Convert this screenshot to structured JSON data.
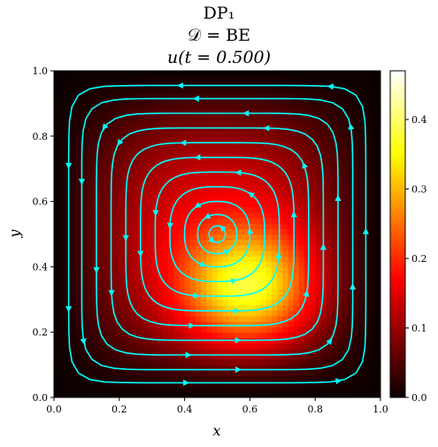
{
  "chart_data": {
    "type": "heatmap",
    "title_lines": [
      "DP$_1$",
      "$\\mathcal{D}$ = BE",
      "$u(t = 0.500)$"
    ],
    "title_display": [
      "DP₁",
      "𝒟 = BE",
      "u(t = 0.500)"
    ],
    "xlabel": "x",
    "ylabel": "y",
    "xlim": [
      0.0,
      1.0
    ],
    "ylim": [
      0.0,
      1.0
    ],
    "xticks": [
      0.0,
      0.2,
      0.4,
      0.6,
      0.8,
      1.0
    ],
    "xtick_labels": [
      "0.0",
      "0.2",
      "0.4",
      "0.6",
      "0.8",
      "1.0"
    ],
    "yticks": [
      0.0,
      0.2,
      0.4,
      0.6,
      0.8,
      1.0
    ],
    "ytick_labels": [
      "0.0",
      "0.2",
      "0.4",
      "0.6",
      "0.8",
      "1.0"
    ],
    "colormap": "hot",
    "colorbar": {
      "range": [
        0.0,
        0.47
      ],
      "ticks": [
        0.0,
        0.1,
        0.2,
        0.3,
        0.4
      ],
      "tick_labels": [
        "0.0",
        "0.1",
        "0.2",
        "0.3",
        "0.4"
      ]
    },
    "field": {
      "peak_value": 0.47,
      "peak_location": [
        0.62,
        0.3
      ]
    },
    "streamlines": {
      "color": "#00ffff",
      "vortex_center": [
        0.5,
        0.5
      ],
      "direction": "counter-clockwise",
      "closed_loops": true
    },
    "grid": false
  }
}
